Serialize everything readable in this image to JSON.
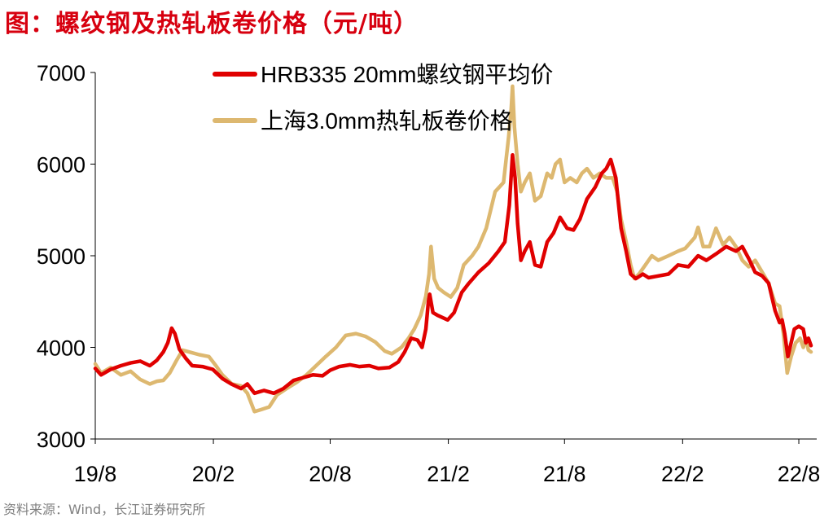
{
  "title": "图：螺纹钢及热轧板卷价格（元/吨）",
  "source": "资料来源：Wind，长江证券研究所",
  "colors": {
    "title": "#d7000f",
    "rebar": "#e00000",
    "hot_rolled": "#ddb870",
    "source": "#808080"
  },
  "chart_data": {
    "type": "line",
    "ylim": [
      3000,
      7000
    ],
    "yticks": [
      "7000",
      "6000",
      "5000",
      "4000",
      "3000"
    ],
    "xticks": [
      "19/8",
      "20/2",
      "20/8",
      "21/2",
      "21/8",
      "22/2",
      "22/8"
    ],
    "x_start": "2019-08-01",
    "x_end": "2022-08-20",
    "legend_position": "top-center",
    "grid": false,
    "series": [
      {
        "name": "HRB335 20mm螺纹钢平均价",
        "color": "#e00000",
        "points": [
          [
            "2019-08-01",
            3770
          ],
          [
            "2019-08-10",
            3700
          ],
          [
            "2019-08-25",
            3760
          ],
          [
            "2019-09-10",
            3800
          ],
          [
            "2019-09-25",
            3830
          ],
          [
            "2019-10-10",
            3850
          ],
          [
            "2019-10-25",
            3800
          ],
          [
            "2019-11-05",
            3860
          ],
          [
            "2019-11-15",
            3950
          ],
          [
            "2019-11-22",
            4050
          ],
          [
            "2019-11-28",
            4210
          ],
          [
            "2019-12-03",
            4150
          ],
          [
            "2019-12-10",
            3980
          ],
          [
            "2019-12-20",
            3880
          ],
          [
            "2019-12-30",
            3800
          ],
          [
            "2020-01-15",
            3790
          ],
          [
            "2020-01-31",
            3760
          ],
          [
            "2020-02-15",
            3660
          ],
          [
            "2020-02-29",
            3600
          ],
          [
            "2020-03-15",
            3550
          ],
          [
            "2020-03-25",
            3600
          ],
          [
            "2020-04-05",
            3500
          ],
          [
            "2020-04-20",
            3530
          ],
          [
            "2020-05-05",
            3500
          ],
          [
            "2020-05-20",
            3550
          ],
          [
            "2020-06-05",
            3640
          ],
          [
            "2020-06-20",
            3670
          ],
          [
            "2020-07-05",
            3700
          ],
          [
            "2020-07-20",
            3690
          ],
          [
            "2020-08-01",
            3750
          ],
          [
            "2020-08-15",
            3790
          ],
          [
            "2020-09-01",
            3810
          ],
          [
            "2020-09-15",
            3790
          ],
          [
            "2020-10-01",
            3800
          ],
          [
            "2020-10-15",
            3770
          ],
          [
            "2020-11-01",
            3780
          ],
          [
            "2020-11-15",
            3840
          ],
          [
            "2020-11-25",
            3950
          ],
          [
            "2020-12-05",
            4100
          ],
          [
            "2020-12-15",
            4080
          ],
          [
            "2020-12-22",
            4000
          ],
          [
            "2020-12-28",
            4200
          ],
          [
            "2021-01-01",
            4500
          ],
          [
            "2021-01-03",
            4580
          ],
          [
            "2021-01-08",
            4380
          ],
          [
            "2021-01-15",
            4350
          ],
          [
            "2021-01-31",
            4300
          ],
          [
            "2021-02-10",
            4380
          ],
          [
            "2021-02-22",
            4600
          ],
          [
            "2021-03-05",
            4700
          ],
          [
            "2021-03-20",
            4820
          ],
          [
            "2021-04-05",
            4920
          ],
          [
            "2021-04-20",
            5050
          ],
          [
            "2021-04-30",
            5150
          ],
          [
            "2021-05-07",
            5550
          ],
          [
            "2021-05-12",
            6100
          ],
          [
            "2021-05-16",
            5850
          ],
          [
            "2021-05-20",
            5350
          ],
          [
            "2021-05-25",
            4950
          ],
          [
            "2021-05-31",
            5050
          ],
          [
            "2021-06-08",
            5150
          ],
          [
            "2021-06-16",
            4900
          ],
          [
            "2021-06-25",
            4880
          ],
          [
            "2021-07-05",
            5150
          ],
          [
            "2021-07-15",
            5250
          ],
          [
            "2021-07-25",
            5420
          ],
          [
            "2021-08-05",
            5300
          ],
          [
            "2021-08-15",
            5280
          ],
          [
            "2021-08-25",
            5400
          ],
          [
            "2021-09-05",
            5620
          ],
          [
            "2021-09-18",
            5750
          ],
          [
            "2021-09-28",
            5900
          ],
          [
            "2021-10-05",
            5950
          ],
          [
            "2021-10-12",
            6050
          ],
          [
            "2021-10-20",
            5850
          ],
          [
            "2021-10-28",
            5300
          ],
          [
            "2021-11-05",
            5050
          ],
          [
            "2021-11-12",
            4800
          ],
          [
            "2021-11-20",
            4750
          ],
          [
            "2021-12-01",
            4800
          ],
          [
            "2021-12-10",
            4760
          ],
          [
            "2021-12-25",
            4780
          ],
          [
            "2022-01-10",
            4800
          ],
          [
            "2022-01-25",
            4900
          ],
          [
            "2022-02-10",
            4880
          ],
          [
            "2022-02-25",
            5000
          ],
          [
            "2022-03-10",
            4950
          ],
          [
            "2022-03-25",
            5020
          ],
          [
            "2022-04-10",
            5100
          ],
          [
            "2022-04-25",
            5050
          ],
          [
            "2022-05-05",
            5100
          ],
          [
            "2022-05-15",
            4970
          ],
          [
            "2022-05-25",
            4820
          ],
          [
            "2022-06-05",
            4780
          ],
          [
            "2022-06-15",
            4700
          ],
          [
            "2022-06-25",
            4400
          ],
          [
            "2022-07-02",
            4270
          ],
          [
            "2022-07-06",
            4300
          ],
          [
            "2022-07-10",
            4150
          ],
          [
            "2022-07-15",
            3900
          ],
          [
            "2022-07-20",
            4050
          ],
          [
            "2022-07-25",
            4200
          ],
          [
            "2022-08-01",
            4230
          ],
          [
            "2022-08-08",
            4200
          ],
          [
            "2022-08-12",
            4050
          ],
          [
            "2022-08-16",
            4100
          ],
          [
            "2022-08-20",
            4020
          ]
        ]
      },
      {
        "name": "上海3.0mm热轧板卷价格",
        "color": "#ddb870",
        "points": [
          [
            "2019-08-01",
            3820
          ],
          [
            "2019-08-10",
            3720
          ],
          [
            "2019-08-25",
            3780
          ],
          [
            "2019-09-10",
            3700
          ],
          [
            "2019-09-25",
            3740
          ],
          [
            "2019-10-10",
            3650
          ],
          [
            "2019-10-25",
            3600
          ],
          [
            "2019-11-05",
            3630
          ],
          [
            "2019-11-15",
            3640
          ],
          [
            "2019-11-25",
            3720
          ],
          [
            "2019-12-05",
            3850
          ],
          [
            "2019-12-15",
            3970
          ],
          [
            "2019-12-25",
            3950
          ],
          [
            "2020-01-10",
            3920
          ],
          [
            "2020-01-25",
            3900
          ],
          [
            "2020-02-05",
            3800
          ],
          [
            "2020-02-15",
            3700
          ],
          [
            "2020-03-01",
            3600
          ],
          [
            "2020-03-15",
            3580
          ],
          [
            "2020-03-25",
            3500
          ],
          [
            "2020-04-05",
            3300
          ],
          [
            "2020-04-15",
            3320
          ],
          [
            "2020-04-28",
            3350
          ],
          [
            "2020-05-10",
            3480
          ],
          [
            "2020-05-25",
            3550
          ],
          [
            "2020-06-10",
            3620
          ],
          [
            "2020-06-25",
            3700
          ],
          [
            "2020-07-10",
            3800
          ],
          [
            "2020-07-25",
            3900
          ],
          [
            "2020-08-10",
            4000
          ],
          [
            "2020-08-25",
            4130
          ],
          [
            "2020-09-10",
            4150
          ],
          [
            "2020-09-25",
            4120
          ],
          [
            "2020-10-10",
            4060
          ],
          [
            "2020-10-25",
            3960
          ],
          [
            "2020-11-05",
            3930
          ],
          [
            "2020-11-20",
            4000
          ],
          [
            "2020-12-01",
            4100
          ],
          [
            "2020-12-10",
            4200
          ],
          [
            "2020-12-20",
            4350
          ],
          [
            "2020-12-28",
            4560
          ],
          [
            "2021-01-02",
            4800
          ],
          [
            "2021-01-05",
            5100
          ],
          [
            "2021-01-10",
            4750
          ],
          [
            "2021-01-16",
            4650
          ],
          [
            "2021-01-25",
            4600
          ],
          [
            "2021-02-05",
            4550
          ],
          [
            "2021-02-15",
            4650
          ],
          [
            "2021-02-25",
            4900
          ],
          [
            "2021-03-10",
            5000
          ],
          [
            "2021-03-20",
            5100
          ],
          [
            "2021-04-01",
            5300
          ],
          [
            "2021-04-15",
            5700
          ],
          [
            "2021-04-28",
            5800
          ],
          [
            "2021-05-06",
            6300
          ],
          [
            "2021-05-10",
            6600
          ],
          [
            "2021-05-12",
            6850
          ],
          [
            "2021-05-15",
            6400
          ],
          [
            "2021-05-20",
            6000
          ],
          [
            "2021-05-25",
            5700
          ],
          [
            "2021-05-31",
            5800
          ],
          [
            "2021-06-08",
            5900
          ],
          [
            "2021-06-16",
            5600
          ],
          [
            "2021-06-25",
            5650
          ],
          [
            "2021-07-05",
            5900
          ],
          [
            "2021-07-12",
            5850
          ],
          [
            "2021-07-18",
            6000
          ],
          [
            "2021-07-25",
            6050
          ],
          [
            "2021-08-01",
            5800
          ],
          [
            "2021-08-10",
            5850
          ],
          [
            "2021-08-20",
            5800
          ],
          [
            "2021-08-28",
            5900
          ],
          [
            "2021-09-05",
            5950
          ],
          [
            "2021-09-15",
            5850
          ],
          [
            "2021-09-25",
            5900
          ],
          [
            "2021-10-05",
            5850
          ],
          [
            "2021-10-15",
            5850
          ],
          [
            "2021-10-22",
            5700
          ],
          [
            "2021-10-28",
            5400
          ],
          [
            "2021-11-05",
            5150
          ],
          [
            "2021-11-12",
            4900
          ],
          [
            "2021-11-18",
            4750
          ],
          [
            "2021-11-25",
            4800
          ],
          [
            "2021-12-05",
            4900
          ],
          [
            "2021-12-15",
            5000
          ],
          [
            "2021-12-25",
            4950
          ],
          [
            "2022-01-10",
            5000
          ],
          [
            "2022-01-25",
            5050
          ],
          [
            "2022-02-05",
            5080
          ],
          [
            "2022-02-20",
            5200
          ],
          [
            "2022-02-25",
            5310
          ],
          [
            "2022-03-05",
            5100
          ],
          [
            "2022-03-15",
            5100
          ],
          [
            "2022-03-25",
            5300
          ],
          [
            "2022-04-05",
            5120
          ],
          [
            "2022-04-15",
            5200
          ],
          [
            "2022-04-25",
            5100
          ],
          [
            "2022-05-05",
            4950
          ],
          [
            "2022-05-15",
            4880
          ],
          [
            "2022-05-25",
            4950
          ],
          [
            "2022-06-05",
            4820
          ],
          [
            "2022-06-15",
            4700
          ],
          [
            "2022-06-25",
            4480
          ],
          [
            "2022-07-02",
            4450
          ],
          [
            "2022-07-08",
            4150
          ],
          [
            "2022-07-14",
            3720
          ],
          [
            "2022-07-20",
            3900
          ],
          [
            "2022-07-27",
            4050
          ],
          [
            "2022-08-03",
            4100
          ],
          [
            "2022-08-08",
            4000
          ],
          [
            "2022-08-12",
            4100
          ],
          [
            "2022-08-16",
            3970
          ],
          [
            "2022-08-20",
            3950
          ]
        ]
      }
    ]
  }
}
